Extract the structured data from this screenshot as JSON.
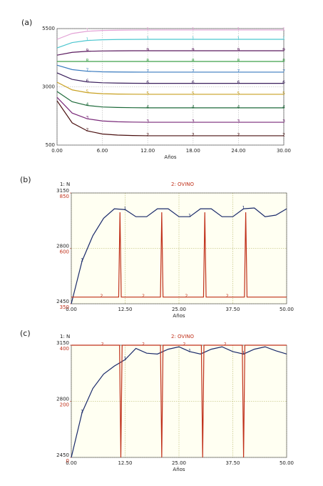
{
  "chart_data": [
    {
      "type": "line",
      "panel_label": "(a)",
      "xlabel": "Años",
      "x": [
        0,
        2,
        4,
        6,
        8,
        10,
        12,
        14,
        16,
        18,
        20,
        22,
        24,
        26,
        28,
        30
      ],
      "xlim": [
        0,
        30
      ],
      "xticks": [
        {
          "value": 0,
          "label": "0.00"
        },
        {
          "value": 6,
          "label": "6.00"
        },
        {
          "value": 12,
          "label": "12.00"
        },
        {
          "value": 18,
          "label": "18.00"
        },
        {
          "value": 24,
          "label": "24.00"
        },
        {
          "value": 30,
          "label": "30.00"
        }
      ],
      "ylim": [
        500,
        5500
      ],
      "yticks": [
        500,
        3000,
        5500
      ],
      "grid": true,
      "series": [
        {
          "name": "1",
          "color": "#e3a3d6",
          "values": [
            5040,
            5290,
            5385,
            5420,
            5432,
            5437,
            5440,
            5440,
            5440,
            5440,
            5440,
            5440,
            5440,
            5440,
            5440,
            5440
          ]
        },
        {
          "name": "1",
          "color": "#4cc6cf",
          "values": [
            4670,
            4900,
            4990,
            5020,
            5033,
            5037,
            5040,
            5040,
            5040,
            5040,
            5040,
            5040,
            5040,
            5040,
            5040,
            5040
          ]
        },
        {
          "name": "9",
          "color": "#5a1a5e",
          "values": [
            4360,
            4480,
            4525,
            4540,
            4546,
            4549,
            4550,
            4550,
            4550,
            4550,
            4550,
            4550,
            4550,
            4550,
            4550,
            4550
          ]
        },
        {
          "name": "8",
          "color": "#3fa04a",
          "values": [
            4090,
            4090,
            4090,
            4090,
            4090,
            4090,
            4090,
            4090,
            4090,
            4090,
            4090,
            4090,
            4090,
            4090,
            4090,
            4090
          ]
        },
        {
          "name": "7",
          "color": "#3a7bbf",
          "values": [
            3930,
            3740,
            3670,
            3645,
            3636,
            3632,
            3630,
            3630,
            3630,
            3630,
            3630,
            3630,
            3630,
            3630,
            3630,
            3630
          ]
        },
        {
          "name": "6",
          "color": "#3a1f5c",
          "values": [
            3600,
            3320,
            3210,
            3175,
            3160,
            3153,
            3150,
            3150,
            3150,
            3150,
            3150,
            3150,
            3150,
            3150,
            3150,
            3150
          ]
        },
        {
          "name": "5",
          "color": "#c8a020",
          "values": [
            3200,
            2870,
            2750,
            2705,
            2690,
            2684,
            2680,
            2680,
            2680,
            2680,
            2680,
            2680,
            2680,
            2680,
            2680,
            2680
          ]
        },
        {
          "name": "4",
          "color": "#1d6a3a",
          "values": [
            2800,
            2360,
            2200,
            2135,
            2115,
            2105,
            2100,
            2100,
            2100,
            2100,
            2100,
            2100,
            2100,
            2100,
            2100,
            2100
          ]
        },
        {
          "name": "3",
          "color": "#7a2a7a",
          "values": [
            2550,
            1875,
            1630,
            1535,
            1500,
            1488,
            1480,
            1480,
            1480,
            1480,
            1480,
            1480,
            1480,
            1480,
            1480,
            1480
          ]
        },
        {
          "name": "2",
          "color": "#4a1010",
          "values": [
            2400,
            1455,
            1110,
            975,
            930,
            910,
            900,
            900,
            900,
            900,
            900,
            900,
            900,
            900,
            900,
            900
          ]
        }
      ]
    },
    {
      "type": "line",
      "panel_label": "(b)",
      "xlabel": "Años",
      "y_label": "1: N",
      "title": "2: OVINO",
      "x": [
        0,
        2.5,
        5,
        7.5,
        10,
        12.5,
        15,
        17.5,
        20,
        22.5,
        25,
        27.5,
        30,
        32.5,
        35,
        37.5,
        40,
        42.5,
        45,
        47.5,
        50
      ],
      "xlim": [
        0,
        50
      ],
      "xticks": [
        {
          "value": 0,
          "label": "0.00"
        },
        {
          "value": 12.5,
          "label": "12.50"
        },
        {
          "value": 25,
          "label": "25.00"
        },
        {
          "value": 37.5,
          "label": "37.50"
        },
        {
          "value": 50,
          "label": "50.00"
        }
      ],
      "ylim": [
        2450,
        3150
      ],
      "yticks": [
        2450,
        2800,
        3150
      ],
      "y2lim": [
        350,
        850
      ],
      "y2ticks": [
        350,
        600,
        850
      ],
      "grid": true,
      "series": [
        {
          "name": "1",
          "color": "#1a2a6a",
          "values": [
            2450,
            2720,
            2880,
            2990,
            3050,
            3045,
            3000,
            3000,
            3050,
            3050,
            3000,
            3000,
            3050,
            3050,
            3000,
            3000,
            3050,
            3055,
            3000,
            3010,
            3050
          ]
        },
        {
          "name": "2",
          "color": "#c0301a",
          "axis": "y2",
          "x": [
            0,
            11,
            11.3,
            11.6,
            20.7,
            21,
            21.3,
            30.7,
            31,
            31.3,
            40.2,
            40.5,
            40.8,
            50
          ],
          "values": [
            380,
            380,
            763,
            380,
            380,
            763,
            380,
            380,
            763,
            380,
            380,
            763,
            380,
            380
          ]
        }
      ]
    },
    {
      "type": "line",
      "panel_label": "(c)",
      "xlabel": "Años",
      "y_label": "1: N",
      "title": "2: OVINO",
      "x": [
        0,
        2.5,
        5,
        7.5,
        10,
        12.5,
        15,
        17.5,
        20,
        22.5,
        25,
        27.5,
        30,
        32.5,
        35,
        37.5,
        40,
        42.5,
        45,
        47.5,
        50
      ],
      "xlim": [
        0,
        50
      ],
      "xticks": [
        {
          "value": 0,
          "label": "0.00"
        },
        {
          "value": 12.5,
          "label": "12.50"
        },
        {
          "value": 25,
          "label": "25.00"
        },
        {
          "value": 37.5,
          "label": "37.50"
        },
        {
          "value": 50,
          "label": "50.00"
        }
      ],
      "ylim": [
        2450,
        3150
      ],
      "yticks": [
        2450,
        2800,
        3150
      ],
      "y2lim": [
        0,
        400
      ],
      "y2ticks": [
        0,
        200,
        400
      ],
      "grid": true,
      "series": [
        {
          "name": "1",
          "color": "#1a2a6a",
          "values": [
            2450,
            2730,
            2880,
            2970,
            3020,
            3060,
            3130,
            3100,
            3095,
            3125,
            3140,
            3110,
            3095,
            3125,
            3140,
            3110,
            3095,
            3125,
            3140,
            3115,
            3095
          ]
        },
        {
          "name": "2",
          "color": "#c0301a",
          "axis": "y2",
          "x": [
            0,
            11.2,
            11.5,
            11.8,
            20.7,
            21,
            21.3,
            30.2,
            30.5,
            30.8,
            39.7,
            40,
            40.3,
            50
          ],
          "values": [
            400,
            400,
            0,
            400,
            400,
            0,
            400,
            400,
            0,
            400,
            400,
            0,
            400,
            400
          ]
        }
      ]
    }
  ]
}
